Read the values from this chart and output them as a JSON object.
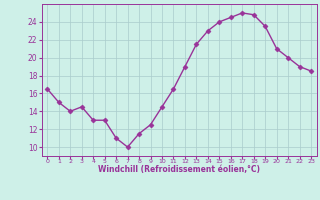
{
  "x": [
    0,
    1,
    2,
    3,
    4,
    5,
    6,
    7,
    8,
    9,
    10,
    11,
    12,
    13,
    14,
    15,
    16,
    17,
    18,
    19,
    20,
    21,
    22,
    23
  ],
  "y": [
    16.5,
    15.0,
    14.0,
    14.5,
    13.0,
    13.0,
    11.0,
    10.0,
    11.5,
    12.5,
    14.5,
    16.5,
    19.0,
    21.5,
    23.0,
    24.0,
    24.5,
    25.0,
    24.8,
    23.5,
    21.0,
    20.0,
    19.0,
    18.5
  ],
  "line_color": "#993399",
  "marker": "D",
  "marker_size": 2.5,
  "line_width": 1.0,
  "bg_color": "#cef0e8",
  "grid_color": "#aacccc",
  "xlabel": "Windchill (Refroidissement éolien,°C)",
  "xlabel_color": "#993399",
  "tick_color": "#993399",
  "ylim": [
    9,
    26
  ],
  "xlim": [
    -0.5,
    23.5
  ],
  "yticks": [
    10,
    12,
    14,
    16,
    18,
    20,
    22,
    24
  ],
  "xtick_labels": [
    "0",
    "1",
    "2",
    "3",
    "4",
    "5",
    "6",
    "7",
    "8",
    "9",
    "10",
    "11",
    "12",
    "13",
    "14",
    "15",
    "16",
    "17",
    "18",
    "19",
    "20",
    "21",
    "22",
    "23"
  ],
  "figsize": [
    3.2,
    2.0
  ],
  "dpi": 100
}
